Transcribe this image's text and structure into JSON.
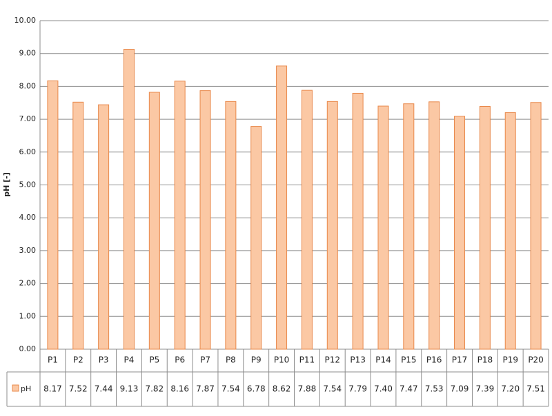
{
  "chart_data": {
    "type": "bar",
    "y_label": "pH [-]",
    "categories": [
      "P1",
      "P2",
      "P3",
      "P4",
      "P5",
      "P6",
      "P7",
      "P8",
      "P9",
      "P10",
      "P11",
      "P12",
      "P13",
      "P14",
      "P15",
      "P16",
      "P17",
      "P18",
      "P19",
      "P20"
    ],
    "series": [
      {
        "name": "pH",
        "color": "#fbc8a4",
        "values": [
          8.17,
          7.52,
          7.44,
          9.13,
          7.82,
          8.16,
          7.87,
          7.54,
          6.78,
          8.62,
          7.88,
          7.54,
          7.79,
          7.4,
          7.47,
          7.53,
          7.09,
          7.39,
          7.2,
          7.51
        ],
        "value_labels": [
          "8.17",
          "7.52",
          "7.44",
          "9.13",
          "7.82",
          "8.16",
          "7.87",
          "7.54",
          "6.78",
          "8.62",
          "7.88",
          "7.54",
          "7.79",
          "7.40",
          "7.47",
          "7.53",
          "7.09",
          "7.39",
          "7.20",
          "7.51"
        ]
      }
    ],
    "ylim": [
      0,
      10
    ],
    "yticks": [
      {
        "value": 0,
        "label": "0.00"
      },
      {
        "value": 1,
        "label": "1.00"
      },
      {
        "value": 2,
        "label": "2.00"
      },
      {
        "value": 3,
        "label": "3.00"
      },
      {
        "value": 4,
        "label": "4.00"
      },
      {
        "value": 5,
        "label": "5.00"
      },
      {
        "value": 6,
        "label": "6.00"
      },
      {
        "value": 7,
        "label": "7.00"
      },
      {
        "value": 8,
        "label": "8.00"
      },
      {
        "value": 9,
        "label": "9.00"
      },
      {
        "value": 10,
        "label": "10.00"
      }
    ],
    "grid": true,
    "data_table": true
  }
}
